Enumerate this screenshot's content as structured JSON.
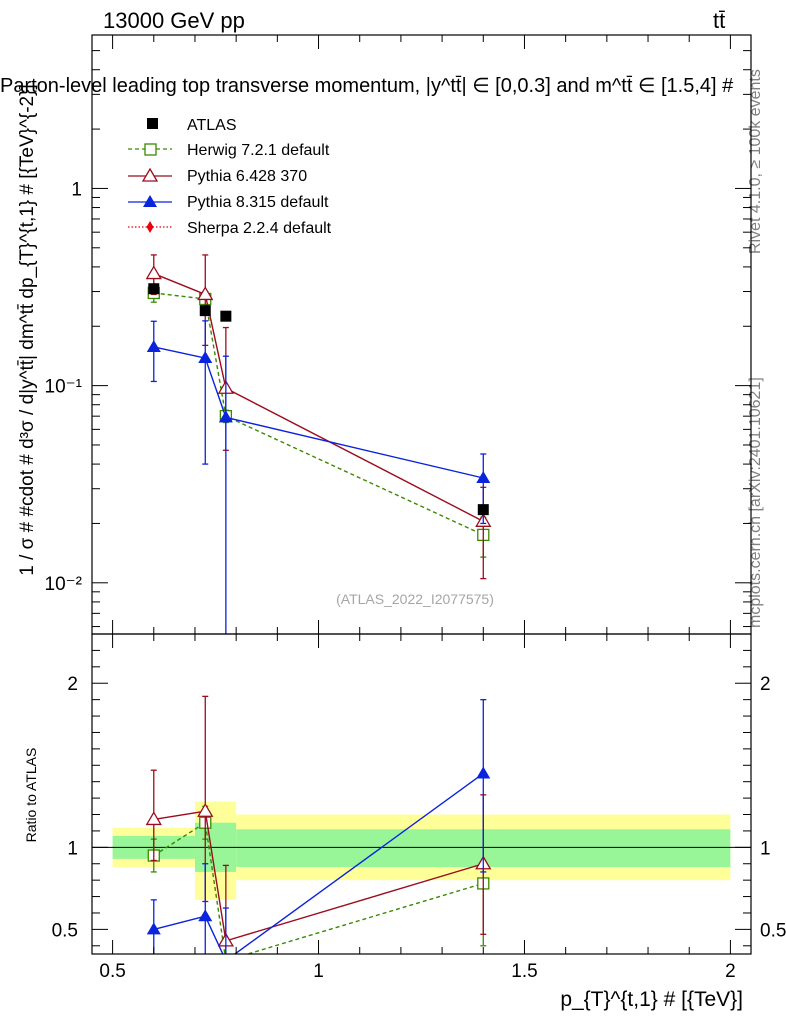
{
  "header": {
    "energy_label": "13000 GeV pp",
    "process_label": "tt̄",
    "plot_title": "Parton-level leading top transverse momentum, |y^tt̄| ∈ [0,0.3] and m^tt̄ ∈ [1.5,4] #"
  },
  "side_labels": {
    "rivet": "Rivet 4.1.0, ≥ 100k events",
    "mcplots": "mcplots.cern.ch [arXiv:2401.10621]"
  },
  "watermark": "(ATLAS_2022_I2077575)",
  "colors": {
    "atlas": "#000000",
    "herwig": "#3a8a00",
    "pythia6": "#9b0d1e",
    "pythia8": "#0a23dc",
    "sherpa": "#e8000b",
    "band_inner": "#98f598",
    "band_outer": "#ffff9a"
  },
  "chart_data": [
    {
      "type": "scatter",
      "panel": "main",
      "title": "Parton-level leading top transverse momentum, |y^tt̄| ∈ [0,0.3] and m^tt̄ ∈ [1.5,4] #",
      "xlabel": "p_{T}^{t,1} # [{TeV}]",
      "ylabel": "1 / σ # #cdot # d³σ / d|y^tt̄| dm^tt̄ dp_{T}^{t,1} # [{TeV}^{-2}]",
      "xlim": [
        0.45,
        2.05
      ],
      "ylim": [
        0.0055,
        6
      ],
      "yscale": "log",
      "y_tick_labels": [
        "10⁻²",
        "10⁻¹",
        "1"
      ],
      "y_tick_values": [
        0.01,
        0.1,
        1
      ],
      "x_tick_labels": [
        "0.5",
        "1",
        "1.5",
        "2"
      ],
      "x_tick_values": [
        0.5,
        1,
        1.5,
        2
      ],
      "legend": [
        "ATLAS",
        "Herwig 7.2.1 default",
        "Pythia 6.428 370",
        "Pythia 8.315 default",
        "Sherpa 2.2.4 default"
      ],
      "series": [
        {
          "name": "ATLAS",
          "x": [
            0.6,
            0.725,
            0.775,
            1.4
          ],
          "y": [
            0.31,
            0.24,
            0.225,
            0.0235
          ],
          "err_lo": [
            0,
            0,
            0,
            0
          ],
          "err_hi": [
            0,
            0,
            0,
            0
          ]
        },
        {
          "name": "Herwig 7.2.1 default",
          "x": [
            0.6,
            0.725,
            0.775,
            1.4
          ],
          "y": [
            0.295,
            0.275,
            0.07,
            0.0175
          ],
          "err_lo": [
            0.03,
            0.025,
            0.005,
            0.004
          ],
          "err_hi": [
            0.03,
            0.025,
            0.005,
            0.004
          ]
        },
        {
          "name": "Pythia 6.428 370",
          "x": [
            0.6,
            0.725,
            0.775,
            1.4
          ],
          "y": [
            0.37,
            0.29,
            0.097,
            0.0205
          ],
          "err_lo": [
            0.08,
            0.13,
            0.05,
            0.01
          ],
          "err_hi": [
            0.09,
            0.17,
            0.1,
            0.01
          ]
        },
        {
          "name": "Pythia 8.315 default",
          "x": [
            0.6,
            0.725,
            0.775,
            1.4
          ],
          "y": [
            0.157,
            0.138,
            0.069,
            0.034
          ],
          "err_lo": [
            0.052,
            0.098,
            0.066,
            0.014
          ],
          "err_hi": [
            0.055,
            0.075,
            0.072,
            0.011
          ]
        },
        {
          "name": "Sherpa 2.2.4 default",
          "x": [],
          "y": [],
          "err_lo": [],
          "err_hi": []
        }
      ]
    },
    {
      "type": "scatter",
      "panel": "ratio",
      "ylabel": "Ratio to ATLAS",
      "xlabel": "p_{T}^{t,1} # [{TeV}]",
      "xlim": [
        0.45,
        2.05
      ],
      "ylim": [
        0.35,
        2.3
      ],
      "y_tick_labels": [
        "0.5",
        "1",
        "2"
      ],
      "y_tick_values": [
        0.5,
        1,
        2
      ],
      "x_tick_labels": [
        "0.5",
        "1",
        "1.5",
        "2"
      ],
      "x_tick_values": [
        0.5,
        1,
        1.5,
        2
      ],
      "bands": [
        {
          "x_from": 0.5,
          "x_to": 0.7,
          "inner": [
            0.93,
            1.07
          ],
          "outer": [
            0.88,
            1.12
          ]
        },
        {
          "x_from": 0.7,
          "x_to": 0.8,
          "inner": [
            0.85,
            1.15
          ],
          "outer": [
            0.68,
            1.28
          ]
        },
        {
          "x_from": 0.8,
          "x_to": 2.0,
          "inner": [
            0.88,
            1.11
          ],
          "outer": [
            0.8,
            1.2
          ]
        }
      ],
      "series": [
        {
          "name": "Herwig 7.2.1 default",
          "x": [
            0.6,
            0.725,
            0.775,
            1.4
          ],
          "y": [
            0.95,
            1.15,
            0.31,
            0.78
          ],
          "err_lo": [
            0.1,
            0.1,
            0.02,
            0.38
          ],
          "err_hi": [
            0.1,
            0.1,
            0.02,
            0.12
          ]
        },
        {
          "name": "Pythia 6.428 370",
          "x": [
            0.6,
            0.725,
            0.775,
            1.4
          ],
          "y": [
            1.17,
            1.22,
            0.43,
            0.9
          ],
          "err_lo": [
            0.25,
            0.55,
            0.25,
            0.43
          ],
          "err_hi": [
            0.3,
            0.7,
            0.46,
            0.42
          ]
        },
        {
          "name": "Pythia 8.315 default",
          "x": [
            0.6,
            0.725,
            0.775,
            1.4
          ],
          "y": [
            0.5,
            0.58,
            0.31,
            1.45
          ],
          "err_lo": [
            0.17,
            0.4,
            0.3,
            0.6
          ],
          "err_hi": [
            0.18,
            0.32,
            0.32,
            0.45
          ]
        }
      ]
    }
  ]
}
